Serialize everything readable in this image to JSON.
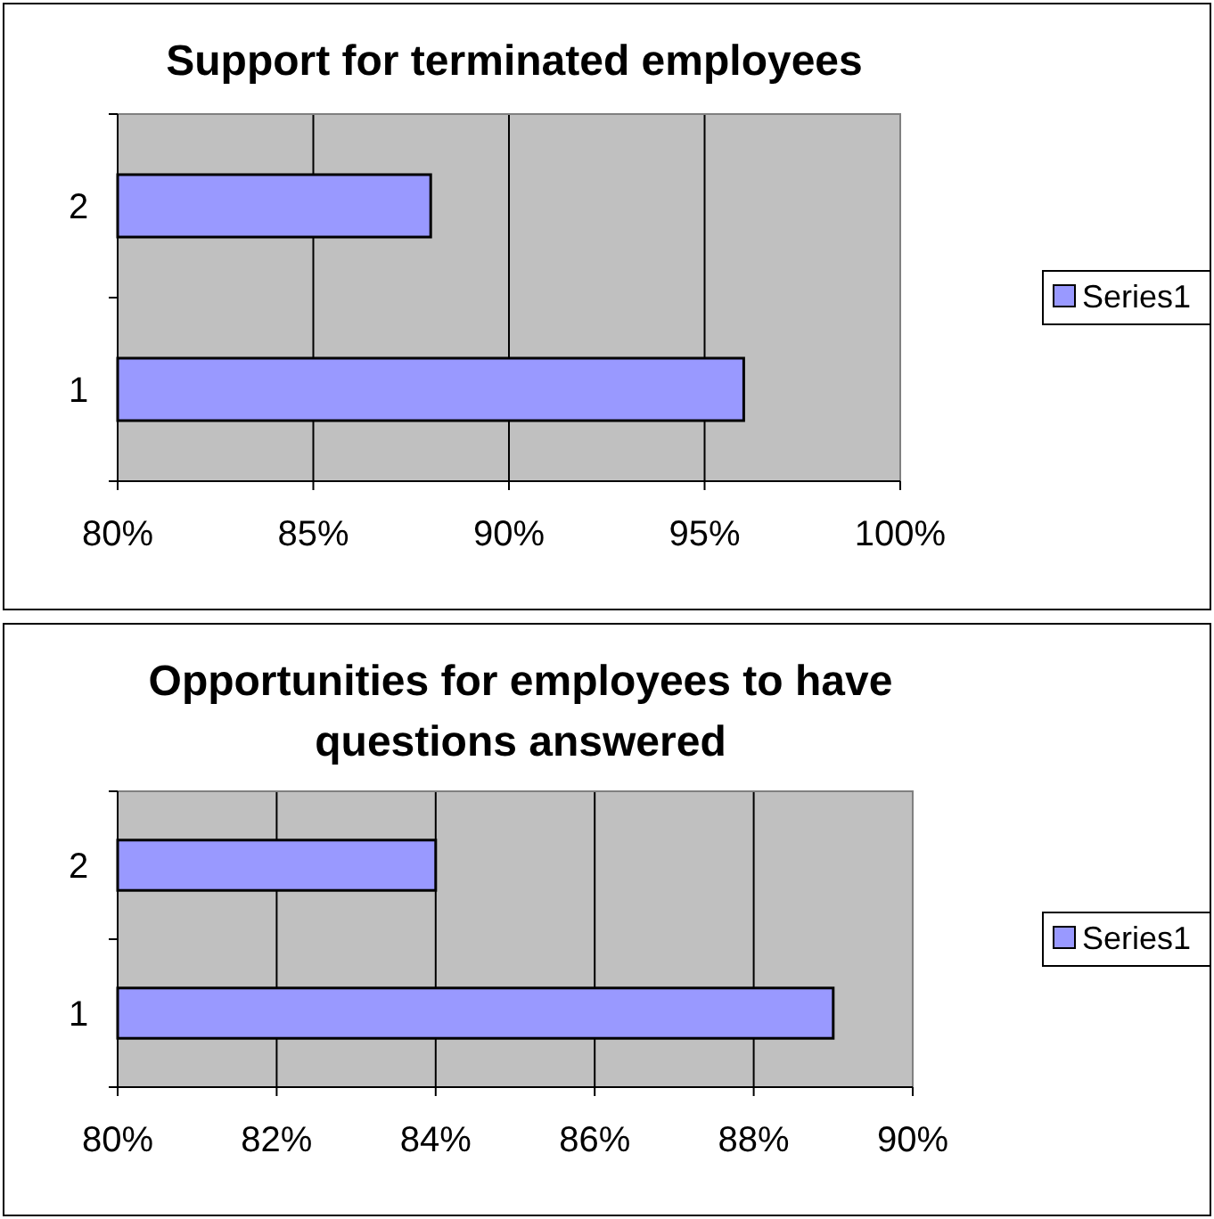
{
  "chart_data": [
    {
      "type": "bar",
      "orientation": "horizontal",
      "title": "Support for terminated employees",
      "categories": [
        "2",
        "1"
      ],
      "series": [
        {
          "name": "Series1",
          "color": "#9999ff",
          "values": [
            88,
            96
          ]
        }
      ],
      "xlim": [
        80,
        100
      ],
      "xticks": [
        {
          "value": 80,
          "label": "80%"
        },
        {
          "value": 85,
          "label": "85%"
        },
        {
          "value": 90,
          "label": "90%"
        },
        {
          "value": 95,
          "label": "95%"
        },
        {
          "value": 100,
          "label": "100%"
        }
      ],
      "grid": "x",
      "legend": "right"
    },
    {
      "type": "bar",
      "orientation": "horizontal",
      "title": "Opportunities for employees to have questions answered",
      "categories": [
        "2",
        "1"
      ],
      "series": [
        {
          "name": "Series1",
          "color": "#9999ff",
          "values": [
            84,
            89
          ]
        }
      ],
      "xlim": [
        80,
        90
      ],
      "xticks": [
        {
          "value": 80,
          "label": "80%"
        },
        {
          "value": 82,
          "label": "82%"
        },
        {
          "value": 84,
          "label": "84%"
        },
        {
          "value": 86,
          "label": "86%"
        },
        {
          "value": 88,
          "label": "88%"
        },
        {
          "value": 90,
          "label": "90%"
        }
      ],
      "grid": "x",
      "legend": "right"
    }
  ]
}
